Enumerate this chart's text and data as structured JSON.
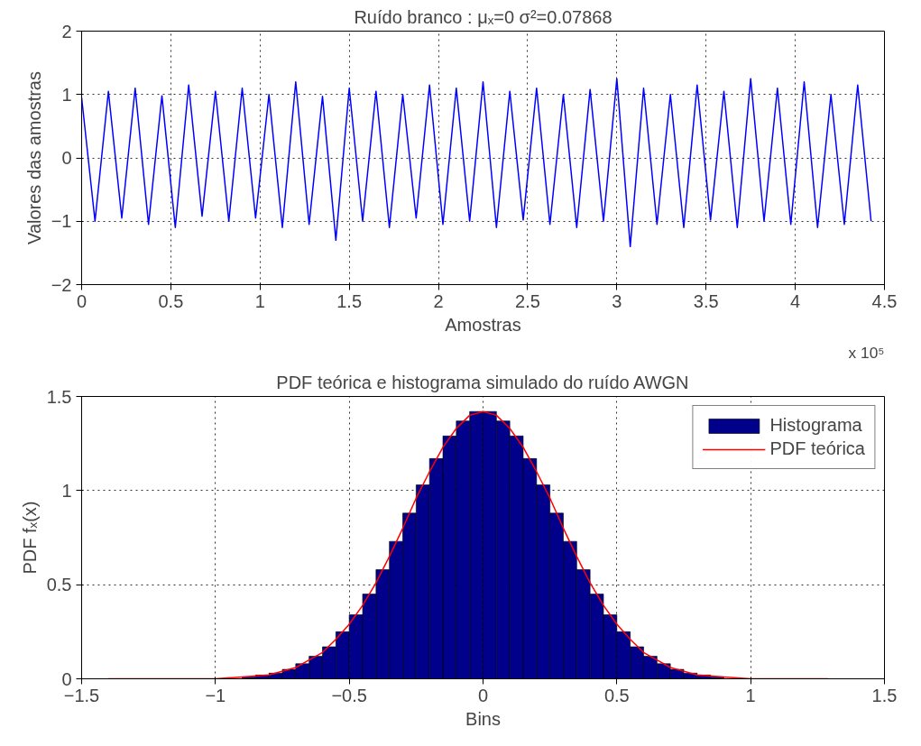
{
  "chart_data": [
    {
      "type": "line",
      "title": "Ruído branco : μₓ=0 σ²=0.07868",
      "xlabel": "Amostras",
      "ylabel": "Valores das amostras",
      "annotations": [
        "x 10⁵"
      ],
      "x": [
        0,
        0.075,
        0.15,
        0.225,
        0.3,
        0.375,
        0.45,
        0.525,
        0.6,
        0.675,
        0.75,
        0.825,
        0.9,
        0.975,
        1.05,
        1.125,
        1.2,
        1.275,
        1.35,
        1.425,
        1.5,
        1.575,
        1.65,
        1.725,
        1.8,
        1.875,
        1.95,
        2.025,
        2.1,
        2.175,
        2.25,
        2.325,
        2.4,
        2.475,
        2.55,
        2.625,
        2.7,
        2.775,
        2.85,
        2.925,
        3.0,
        3.075,
        3.15,
        3.225,
        3.3,
        3.375,
        3.45,
        3.525,
        3.6,
        3.675,
        3.75,
        3.825,
        3.9,
        3.975,
        4.05,
        4.125,
        4.2,
        4.275,
        4.35,
        4.425
      ],
      "series": [
        {
          "color": "#0000ff",
          "values": [
            0.95,
            -1.0,
            1.05,
            -0.95,
            1.1,
            -1.05,
            0.98,
            -1.1,
            1.15,
            -0.92,
            1.05,
            -1.0,
            1.1,
            -0.95,
            1.0,
            -1.1,
            1.2,
            -1.05,
            0.97,
            -1.3,
            1.1,
            -1.0,
            1.05,
            -1.1,
            1.0,
            -0.95,
            1.15,
            -1.05,
            1.1,
            -1.0,
            1.2,
            -1.1,
            1.05,
            -0.98,
            1.1,
            -1.05,
            1.0,
            -1.1,
            1.08,
            -1.0,
            1.25,
            -1.4,
            1.1,
            -1.05,
            1.0,
            -1.1,
            1.15,
            -0.98,
            1.05,
            -1.1,
            1.25,
            -1.0,
            1.1,
            -1.05,
            1.2,
            -1.1,
            1.0,
            -1.05,
            1.15,
            -1.0
          ]
        }
      ],
      "xlim": [
        0,
        4.5
      ],
      "xticks": [
        0,
        0.5,
        1,
        1.5,
        2,
        2.5,
        3,
        3.5,
        4,
        4.5
      ],
      "ylim": [
        -2,
        2
      ],
      "yticks": [
        -2,
        -1,
        0,
        1,
        2
      ],
      "grid": true,
      "line_style": "solid",
      "legend": false
    },
    {
      "type": "histogram",
      "title": "PDF teórica e histograma simulado do ruído AWGN",
      "xlabel": "Bins",
      "ylabel": "PDF fₓ(x)",
      "series": [
        {
          "type": "histogram",
          "name": "Histograma",
          "color": "#00008b",
          "bins": [
            -0.9,
            -0.85,
            -0.8,
            -0.75,
            -0.7,
            -0.65,
            -0.6,
            -0.55,
            -0.5,
            -0.45,
            -0.4,
            -0.35,
            -0.3,
            -0.25,
            -0.2,
            -0.15,
            -0.1,
            -0.05,
            0,
            0.05,
            0.1,
            0.15,
            0.2,
            0.25,
            0.3,
            0.35,
            0.4,
            0.45,
            0.5,
            0.55,
            0.6,
            0.65,
            0.7,
            0.75,
            0.8,
            0.85,
            0.9
          ],
          "values": [
            0.01,
            0.02,
            0.03,
            0.05,
            0.08,
            0.12,
            0.17,
            0.25,
            0.34,
            0.45,
            0.58,
            0.73,
            0.88,
            1.03,
            1.17,
            1.29,
            1.37,
            1.42,
            1.42,
            1.37,
            1.29,
            1.17,
            1.03,
            0.88,
            0.73,
            0.58,
            0.45,
            0.34,
            0.25,
            0.17,
            0.12,
            0.08,
            0.05,
            0.03,
            0.02,
            0.01
          ]
        },
        {
          "type": "line",
          "name": "PDF teórica",
          "color": "#ff0000",
          "x": [
            -1.4,
            -1.2,
            -1.0,
            -0.9,
            -0.8,
            -0.7,
            -0.65,
            -0.6,
            -0.55,
            -0.5,
            -0.45,
            -0.4,
            -0.35,
            -0.3,
            -0.25,
            -0.2,
            -0.15,
            -0.1,
            -0.05,
            0,
            0.05,
            0.1,
            0.15,
            0.2,
            0.25,
            0.3,
            0.35,
            0.4,
            0.45,
            0.5,
            0.55,
            0.6,
            0.65,
            0.7,
            0.8,
            0.9,
            1.0,
            1.2,
            1.29
          ],
          "values": [
            0,
            0,
            0,
            0.01,
            0.02,
            0.06,
            0.1,
            0.14,
            0.21,
            0.29,
            0.39,
            0.51,
            0.65,
            0.8,
            0.96,
            1.1,
            1.23,
            1.33,
            1.4,
            1.42,
            1.4,
            1.33,
            1.23,
            1.1,
            0.96,
            0.8,
            0.65,
            0.51,
            0.39,
            0.29,
            0.21,
            0.14,
            0.1,
            0.06,
            0.02,
            0.01,
            0,
            0,
            0
          ]
        }
      ],
      "xlim": [
        -1.5,
        1.5
      ],
      "xticks": [
        -1.5,
        -1,
        -0.5,
        0,
        0.5,
        1,
        1.5
      ],
      "ylim": [
        0,
        1.5
      ],
      "yticks": [
        0,
        0.5,
        1,
        1.5
      ],
      "grid": true,
      "legend": "top right",
      "line_style": "solid"
    }
  ]
}
